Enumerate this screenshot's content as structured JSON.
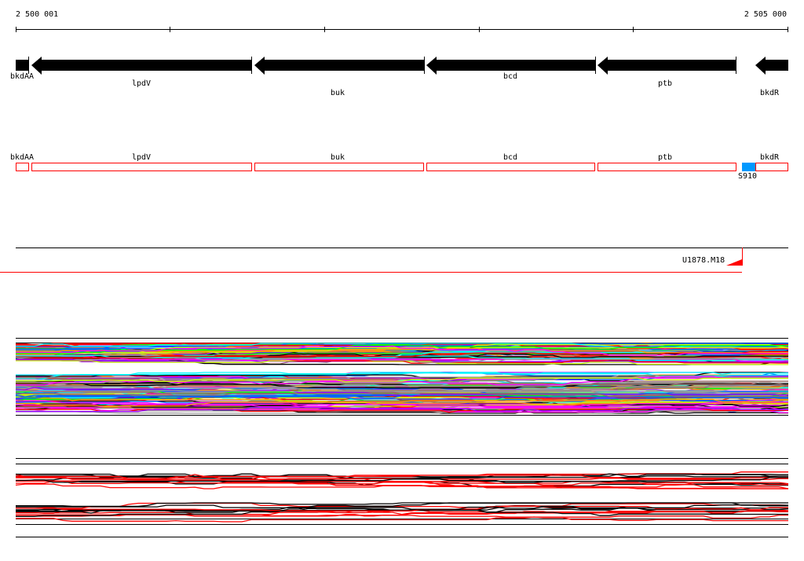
{
  "ruler": {
    "start_label": "2 500 001",
    "end_label": "2 505 000"
  },
  "genes": [
    {
      "name": "bkdAA",
      "strand": "none"
    },
    {
      "name": "lpdV",
      "strand": "-"
    },
    {
      "name": "buk",
      "strand": "-"
    },
    {
      "name": "bcd",
      "strand": "-"
    },
    {
      "name": "ptb",
      "strand": "-"
    },
    {
      "name": "bkdR",
      "strand": "-"
    }
  ],
  "feature_track": {
    "genes": [
      "bkdAA",
      "lpdV",
      "buk",
      "bcd",
      "ptb",
      "bkdR"
    ],
    "marker": {
      "label": "S910",
      "color": "#0099ff"
    }
  },
  "alignment_track": {
    "label": "U1878.M18",
    "color": "#ff0000"
  },
  "line_colors": [
    "#000000",
    "#ff0000",
    "#ff00ff",
    "#00ffff",
    "#00ff00",
    "#0066ff",
    "#ff9900",
    "#ccff00",
    "#999999",
    "#9900ff",
    "#996666"
  ]
}
